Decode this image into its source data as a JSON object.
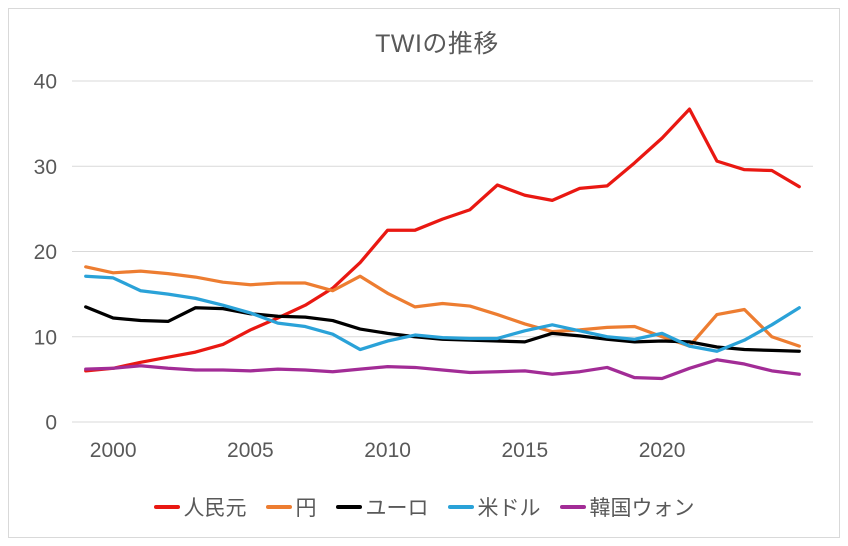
{
  "title": "TWIの推移",
  "colors": {
    "grid": "#d9d9d9",
    "frame_border": "#d9d9d9",
    "axis_text": "#595959",
    "title_text": "#595959",
    "background": "#ffffff"
  },
  "chart_data": {
    "type": "line",
    "title": "TWIの推移",
    "xlabel": "",
    "ylabel": "",
    "ylim": [
      0,
      40
    ],
    "yticks": [
      0,
      10,
      20,
      30,
      40
    ],
    "xticks": [
      2000,
      2005,
      2010,
      2015,
      2020
    ],
    "grid": true,
    "legend_position": "bottom",
    "x": [
      1999,
      2000,
      2001,
      2002,
      2003,
      2004,
      2005,
      2006,
      2007,
      2008,
      2009,
      2010,
      2011,
      2012,
      2013,
      2014,
      2015,
      2016,
      2017,
      2018,
      2019,
      2020,
      2021,
      2022,
      2023,
      2024,
      2025
    ],
    "series": [
      {
        "name": "人民元",
        "color": "#e91812",
        "values": [
          6.0,
          6.3,
          7.0,
          7.6,
          8.2,
          9.1,
          10.8,
          12.2,
          13.7,
          15.7,
          18.7,
          22.5,
          22.5,
          23.8,
          24.9,
          27.8,
          26.6,
          26.0,
          27.4,
          27.7,
          30.4,
          33.3,
          36.7,
          30.6,
          29.6,
          29.5,
          27.6
        ]
      },
      {
        "name": "円",
        "color": "#ed7d31",
        "values": [
          18.2,
          17.5,
          17.7,
          17.4,
          17.0,
          16.4,
          16.1,
          16.3,
          16.3,
          15.4,
          17.1,
          15.1,
          13.5,
          13.9,
          13.6,
          12.6,
          11.5,
          10.6,
          10.8,
          11.1,
          11.2,
          10.0,
          8.9,
          12.6,
          13.2,
          10.0,
          8.9
        ]
      },
      {
        "name": "ユーロ",
        "color": "#000000",
        "values": [
          13.5,
          12.2,
          11.9,
          11.8,
          13.4,
          13.3,
          12.7,
          12.4,
          12.3,
          11.9,
          10.9,
          10.4,
          10.0,
          9.7,
          9.6,
          9.5,
          9.4,
          10.4,
          10.1,
          9.7,
          9.4,
          9.5,
          9.4,
          8.8,
          8.5,
          8.4,
          8.3
        ]
      },
      {
        "name": "米ドル",
        "color": "#2aa2d8",
        "values": [
          17.1,
          16.9,
          15.4,
          15.0,
          14.5,
          13.7,
          12.8,
          11.6,
          11.2,
          10.3,
          8.5,
          9.5,
          10.2,
          9.9,
          9.8,
          9.8,
          10.7,
          11.4,
          10.7,
          10.0,
          9.7,
          10.4,
          8.9,
          8.3,
          9.6,
          11.4,
          13.4
        ]
      },
      {
        "name": "韓国ウォン",
        "color": "#a22c96",
        "values": [
          6.2,
          6.3,
          6.6,
          6.3,
          6.1,
          6.1,
          6.0,
          6.2,
          6.1,
          5.9,
          6.2,
          6.5,
          6.4,
          6.1,
          5.8,
          5.9,
          6.0,
          5.6,
          5.9,
          6.4,
          5.2,
          5.1,
          6.3,
          7.3,
          6.8,
          6.0,
          5.6
        ]
      }
    ]
  }
}
